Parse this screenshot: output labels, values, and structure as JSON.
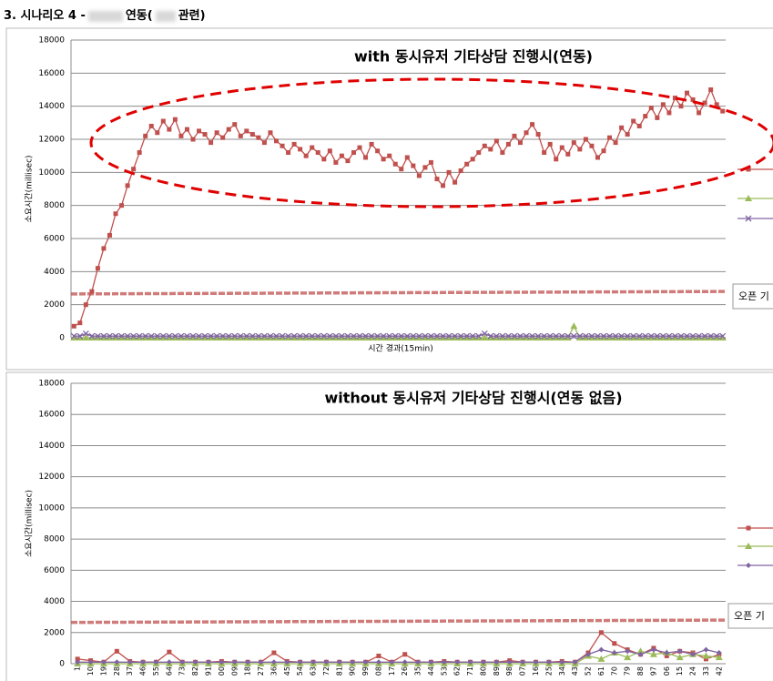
{
  "header": {
    "parts": [
      "3. 시나리오 4 -",
      "연동(",
      "관련)"
    ]
  },
  "chart_data": [
    {
      "type": "line",
      "title": "with 동시유저 기타상담 진행시(연동)",
      "y_label": "소요시간(millisec)",
      "x_label": "시간 경과(15min)",
      "ylim": [
        0,
        18000
      ],
      "yticks": [
        0,
        2000,
        4000,
        6000,
        8000,
        10000,
        12000,
        14000,
        16000,
        18000
      ],
      "grid": true,
      "series": [
        {
          "color": "#c0504d",
          "marker": "square",
          "values": [
            700,
            900,
            2000,
            2800,
            4200,
            5400,
            6200,
            7500,
            8000,
            9200,
            10200,
            11200,
            12200,
            12800,
            12400,
            13100,
            12600,
            13200,
            12200,
            12600,
            12000,
            12500,
            12300,
            11800,
            12400,
            12100,
            12600,
            12900,
            12200,
            12500,
            12300,
            12100,
            11800,
            12400,
            11900,
            11600,
            11200,
            11700,
            11400,
            11000,
            11500,
            11200,
            10800,
            11300,
            10600,
            11000,
            10700,
            11200,
            11500,
            10900,
            11700,
            11300,
            10800,
            11000,
            10500,
            10200,
            10900,
            10400,
            9800,
            10300,
            10600,
            9600,
            9200,
            10000,
            9400,
            10100,
            10500,
            10800,
            11200,
            11600,
            11400,
            11900,
            11200,
            11700,
            12200,
            11800,
            12400,
            12900,
            12300,
            11200,
            11700,
            10800,
            11500,
            11100,
            11800,
            11400,
            12000,
            11600,
            10900,
            11300,
            12100,
            11800,
            12700,
            12300,
            13100,
            12800,
            13400,
            13900,
            13300,
            14100,
            13600,
            14500,
            14000,
            14800,
            14400,
            13600,
            14200,
            15000,
            14100,
            13700
          ]
        },
        {
          "color": "#9bbb59",
          "marker": "triangle",
          "values": [
            0,
            0,
            0,
            0,
            0,
            0,
            0,
            0,
            0,
            0,
            0,
            0,
            0,
            0,
            0,
            0,
            0,
            0,
            0,
            0,
            0,
            0,
            0,
            0,
            0,
            0,
            0,
            0,
            0,
            0,
            0,
            0,
            0,
            0,
            0,
            0,
            0,
            0,
            0,
            0,
            0,
            0,
            0,
            0,
            0,
            0,
            0,
            0,
            0,
            0,
            0,
            0,
            0,
            0,
            0,
            0,
            0,
            0,
            0,
            0,
            0,
            0,
            0,
            0,
            0,
            0,
            0,
            0,
            0,
            0,
            0,
            0,
            0,
            0,
            0,
            0,
            0,
            0,
            0,
            0,
            0,
            0,
            0,
            0,
            700,
            0,
            0,
            0,
            0,
            0,
            0,
            0,
            0,
            0,
            0,
            0,
            0,
            0,
            0,
            0,
            0,
            0,
            0,
            0,
            0,
            0,
            0,
            0,
            0,
            0
          ]
        },
        {
          "color": "#8064a2",
          "marker": "x",
          "values": [
            100,
            100,
            250,
            100,
            100,
            100,
            100,
            100,
            100,
            100,
            100,
            100,
            100,
            100,
            100,
            100,
            100,
            100,
            100,
            100,
            100,
            100,
            100,
            100,
            100,
            100,
            100,
            100,
            100,
            100,
            100,
            100,
            100,
            100,
            100,
            100,
            100,
            100,
            100,
            100,
            100,
            100,
            100,
            100,
            100,
            100,
            100,
            100,
            100,
            100,
            100,
            100,
            100,
            100,
            100,
            100,
            100,
            100,
            100,
            100,
            100,
            100,
            100,
            100,
            100,
            100,
            100,
            100,
            100,
            250,
            100,
            100,
            100,
            100,
            100,
            100,
            100,
            100,
            100,
            100,
            100,
            100,
            100,
            100,
            100,
            100,
            100,
            100,
            100,
            100,
            100,
            100,
            100,
            100,
            100,
            100,
            100,
            100,
            100,
            100,
            100,
            100,
            100,
            100,
            100,
            100,
            100,
            100,
            100,
            100
          ]
        }
      ],
      "threshold": {
        "name": "오픈 기",
        "color": "#c0504d",
        "values": [
          2650,
          2800
        ]
      }
    },
    {
      "type": "line",
      "title": "without 동시유저 기타상담 진행시(연동 없음)",
      "y_label": "소요시간(millisec)",
      "ylim": [
        0,
        18000
      ],
      "yticks": [
        0,
        2000,
        4000,
        6000,
        8000,
        10000,
        12000,
        14000,
        16000,
        18000
      ],
      "grid": true,
      "categories": [
        "1",
        "10",
        "19",
        "28",
        "37",
        "46",
        "55",
        "64",
        "73",
        "82",
        "91",
        "00",
        "09",
        "18",
        "27",
        "36",
        "45",
        "54",
        "63",
        "72",
        "81",
        "90",
        "99",
        "08",
        "17",
        "26",
        "35",
        "44",
        "53",
        "62",
        "71",
        "80",
        "89",
        "98",
        "07",
        "16",
        "25",
        "34",
        "43",
        "52",
        "61",
        "70",
        "79",
        "88",
        "97",
        "06",
        "15",
        "24",
        "33",
        "42"
      ],
      "series": [
        {
          "color": "#c0504d",
          "marker": "square",
          "values": [
            300,
            200,
            100,
            800,
            150,
            100,
            100,
            750,
            100,
            100,
            100,
            150,
            100,
            100,
            100,
            700,
            150,
            100,
            100,
            100,
            100,
            100,
            100,
            500,
            100,
            600,
            100,
            100,
            150,
            100,
            100,
            100,
            100,
            200,
            100,
            100,
            100,
            150,
            100,
            700,
            2000,
            1300,
            900,
            600,
            1000,
            500,
            800,
            700,
            300,
            600
          ]
        },
        {
          "color": "#9bbb59",
          "marker": "triangle",
          "values": [
            0,
            0,
            0,
            0,
            0,
            0,
            0,
            0,
            0,
            0,
            0,
            0,
            0,
            0,
            0,
            0,
            0,
            0,
            0,
            0,
            0,
            0,
            0,
            0,
            0,
            0,
            0,
            0,
            0,
            0,
            0,
            0,
            0,
            0,
            0,
            0,
            0,
            0,
            0,
            500,
            300,
            700,
            400,
            800,
            600,
            700,
            400,
            600,
            500,
            400
          ]
        },
        {
          "color": "#8064a2",
          "marker": "diamond",
          "values": [
            100,
            100,
            100,
            100,
            100,
            100,
            100,
            100,
            100,
            100,
            100,
            100,
            100,
            100,
            100,
            100,
            100,
            100,
            100,
            100,
            100,
            100,
            100,
            100,
            100,
            100,
            100,
            100,
            100,
            100,
            100,
            100,
            100,
            100,
            100,
            100,
            100,
            100,
            100,
            600,
            900,
            700,
            800,
            600,
            900,
            700,
            800,
            600,
            900,
            700
          ]
        }
      ],
      "threshold": {
        "name": "오픈 기",
        "color": "#c0504d",
        "values": [
          2650,
          2800
        ]
      }
    }
  ]
}
